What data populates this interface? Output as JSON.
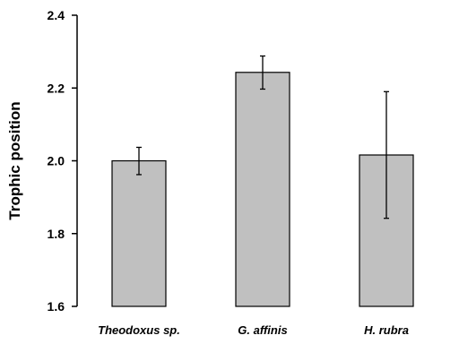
{
  "chart_data": {
    "type": "bar",
    "title": "",
    "xlabel": "",
    "ylabel": "Trophic position",
    "categories": [
      "Theodoxus sp.",
      "G. affinis",
      "H. rubra"
    ],
    "values": [
      2.0,
      2.243,
      2.016
    ],
    "error_upper": [
      2.037,
      2.288,
      2.19
    ],
    "error_lower": [
      1.962,
      2.197,
      1.842
    ],
    "ylim": [
      1.6,
      2.4
    ],
    "yticks": [
      "1.6",
      "1.8",
      "2.0",
      "2.2",
      "2.4"
    ],
    "grid": false,
    "legend": "none",
    "colors": {
      "bar_fill": "#c0c0c0",
      "bar_stroke": "#000000",
      "axis": "#000000"
    }
  }
}
